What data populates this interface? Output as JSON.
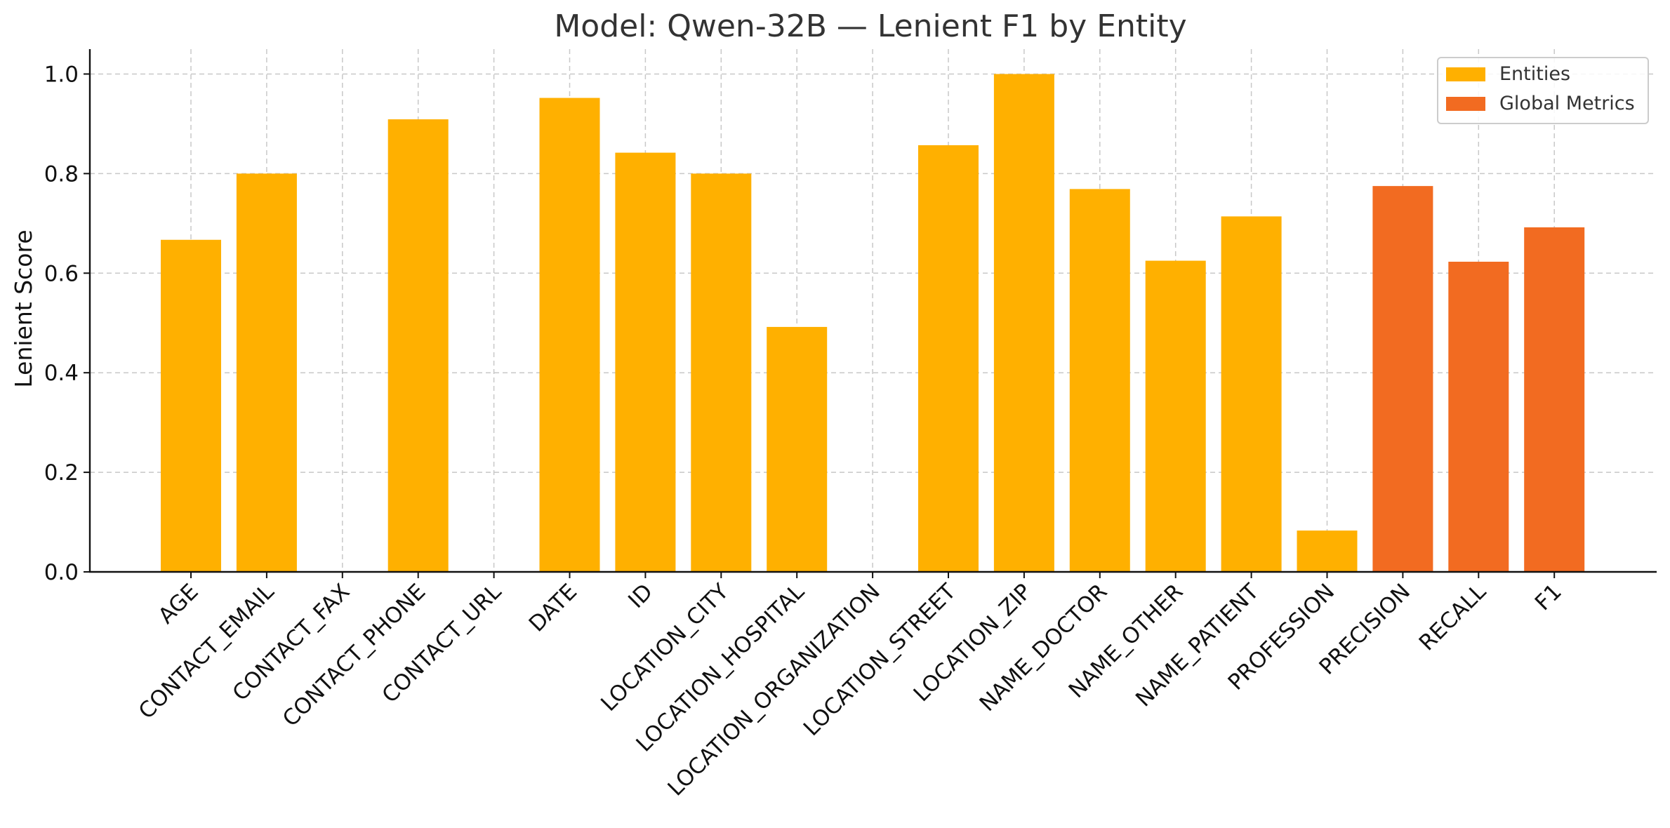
{
  "chart_data": {
    "type": "bar",
    "title": "Model: Qwen-32B — Lenient F1 by Entity",
    "xlabel": "",
    "ylabel": "Lenient Score",
    "ylim": [
      0,
      1.05
    ],
    "yticks": [
      "0.0",
      "0.2",
      "0.4",
      "0.6",
      "0.8",
      "1.0"
    ],
    "grid": true,
    "legend_position": "top-right",
    "categories": [
      "AGE",
      "CONTACT_EMAIL",
      "CONTACT_FAX",
      "CONTACT_PHONE",
      "CONTACT_URL",
      "DATE",
      "ID",
      "LOCATION_CITY",
      "LOCATION_HOSPITAL",
      "LOCATION_ORGANIZATION",
      "LOCATION_STREET",
      "LOCATION_ZIP",
      "NAME_DOCTOR",
      "NAME_OTHER",
      "NAME_PATIENT",
      "PROFESSION",
      "PRECISION",
      "RECALL",
      "F1"
    ],
    "values": [
      0.667,
      0.8,
      0.0,
      0.909,
      0.0,
      0.952,
      0.842,
      0.8,
      0.492,
      0.0,
      0.857,
      1.0,
      0.769,
      0.625,
      0.714,
      0.083,
      0.775,
      0.623,
      0.692
    ],
    "groups": [
      "Entities",
      "Entities",
      "Entities",
      "Entities",
      "Entities",
      "Entities",
      "Entities",
      "Entities",
      "Entities",
      "Entities",
      "Entities",
      "Entities",
      "Entities",
      "Entities",
      "Entities",
      "Entities",
      "Global Metrics",
      "Global Metrics",
      "Global Metrics"
    ],
    "legend": [
      {
        "name": "Entities",
        "color": "#FFB000"
      },
      {
        "name": "Global Metrics",
        "color": "#F26B21"
      }
    ]
  }
}
